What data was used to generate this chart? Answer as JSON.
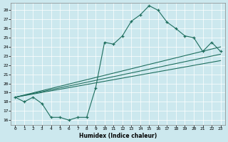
{
  "title": "",
  "xlabel": "Humidex (Indice chaleur)",
  "bg_color": "#cce8ee",
  "line_color": "#1e6e5e",
  "xlim": [
    -0.5,
    23.5
  ],
  "ylim": [
    15.5,
    28.8
  ],
  "yticks": [
    16,
    17,
    18,
    19,
    20,
    21,
    22,
    23,
    24,
    25,
    26,
    27,
    28
  ],
  "xticks": [
    0,
    1,
    2,
    3,
    4,
    5,
    6,
    7,
    8,
    9,
    10,
    11,
    12,
    13,
    14,
    15,
    16,
    17,
    18,
    19,
    20,
    21,
    22,
    23
  ],
  "main_x": [
    0,
    1,
    2,
    3,
    4,
    5,
    6,
    7,
    8,
    9,
    10,
    11,
    12,
    13,
    14,
    15,
    16,
    17,
    18,
    19,
    20,
    21,
    22,
    23
  ],
  "main_y": [
    18.5,
    18.0,
    18.5,
    17.8,
    16.3,
    16.3,
    16.0,
    16.3,
    16.3,
    19.5,
    24.5,
    24.3,
    25.2,
    26.8,
    27.5,
    28.5,
    28.0,
    26.7,
    26.0,
    25.2,
    25.0,
    23.5,
    24.5,
    23.5
  ],
  "line1_x": [
    0,
    23
  ],
  "line1_y": [
    18.5,
    22.5
  ],
  "line2_x": [
    0,
    23
  ],
  "line2_y": [
    18.5,
    24.0
  ],
  "line3_x": [
    0,
    23
  ],
  "line3_y": [
    18.5,
    23.2
  ]
}
